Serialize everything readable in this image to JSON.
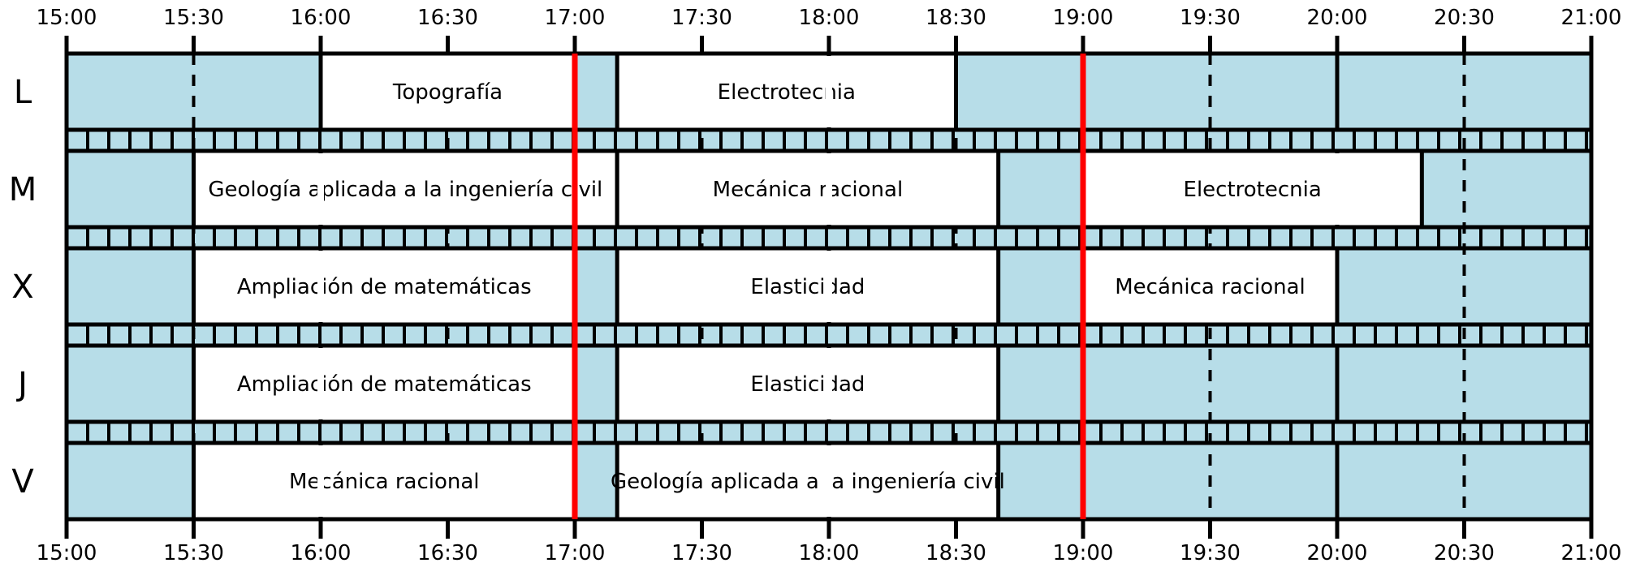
{
  "timeline": {
    "start": "15:00",
    "end": "21:00",
    "ticks": [
      "15:00",
      "15:30",
      "16:00",
      "16:30",
      "17:00",
      "17:30",
      "18:00",
      "18:30",
      "19:00",
      "19:30",
      "20:00",
      "20:30",
      "21:00"
    ]
  },
  "markers": [
    "17:00",
    "19:00"
  ],
  "colors": {
    "free": "#b7dde8",
    "class": "#ffffff",
    "outline": "#000000",
    "marker": "#ff0000"
  },
  "days": [
    {
      "label": "L",
      "classes": [
        {
          "name": "Topografía",
          "start": "16:00",
          "end": "17:00"
        },
        {
          "name": "Electrotecnia",
          "start": "17:10",
          "end": "18:30"
        }
      ]
    },
    {
      "label": "M",
      "classes": [
        {
          "name": "Geología aplicada a la ingeniería civil",
          "start": "15:30",
          "end": "17:10"
        },
        {
          "name": "Mecánica racional",
          "start": "17:10",
          "end": "18:40"
        },
        {
          "name": "Electrotecnia",
          "start": "19:00",
          "end": "20:20"
        }
      ]
    },
    {
      "label": "X",
      "classes": [
        {
          "name": "Ampliación de matemáticas",
          "start": "15:30",
          "end": "17:00"
        },
        {
          "name": "Elasticidad",
          "start": "17:10",
          "end": "18:40"
        },
        {
          "name": "Mecánica racional",
          "start": "19:00",
          "end": "20:00"
        }
      ]
    },
    {
      "label": "J",
      "classes": [
        {
          "name": "Ampliación de matemáticas",
          "start": "15:30",
          "end": "17:00"
        },
        {
          "name": "Elasticidad",
          "start": "17:10",
          "end": "18:40"
        }
      ]
    },
    {
      "label": "V",
      "classes": [
        {
          "name": "Mecánica racional",
          "start": "15:30",
          "end": "17:00"
        },
        {
          "name": "Geología aplicada a la ingeniería civil",
          "start": "17:10",
          "end": "18:40"
        }
      ]
    }
  ]
}
